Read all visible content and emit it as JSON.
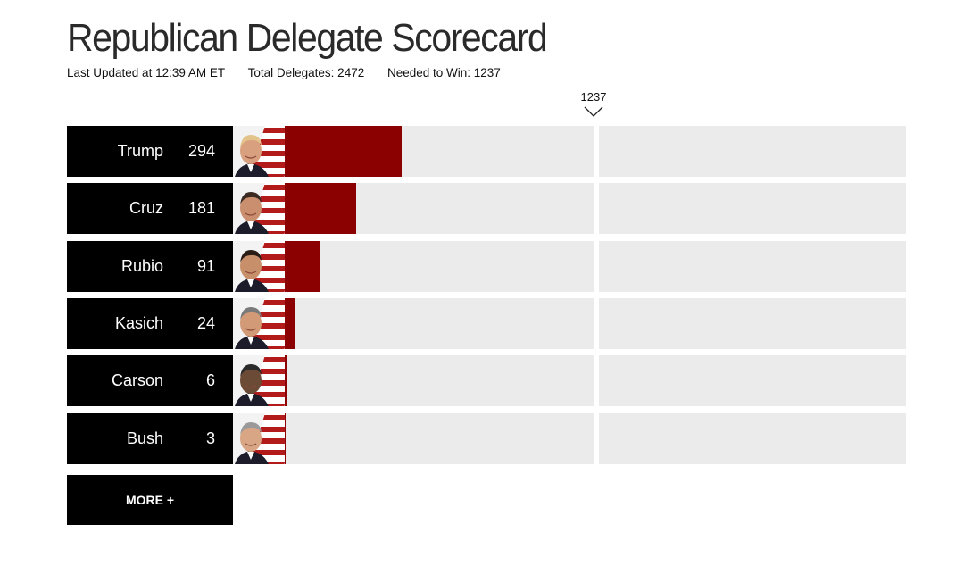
{
  "header": {
    "title": "Republican Delegate Scorecard",
    "last_updated": "Last Updated at 12:39 AM ET",
    "total_delegates": "Total Delegates: 2472",
    "needed_to_win": "Needed to Win: 1237"
  },
  "threshold_label": "1237",
  "more_button": "MORE +",
  "colors": {
    "bar": "#8b0000",
    "track": "#ebebeb",
    "name_box": "#000000"
  },
  "chart_data": {
    "type": "bar",
    "orientation": "horizontal",
    "categories": [
      "Trump",
      "Cruz",
      "Rubio",
      "Kasich",
      "Carson",
      "Bush"
    ],
    "values": [
      294,
      181,
      91,
      24,
      6,
      3
    ],
    "threshold": 1237,
    "xlim": [
      0,
      2472
    ],
    "title": "Republican Delegate Scorecard"
  }
}
